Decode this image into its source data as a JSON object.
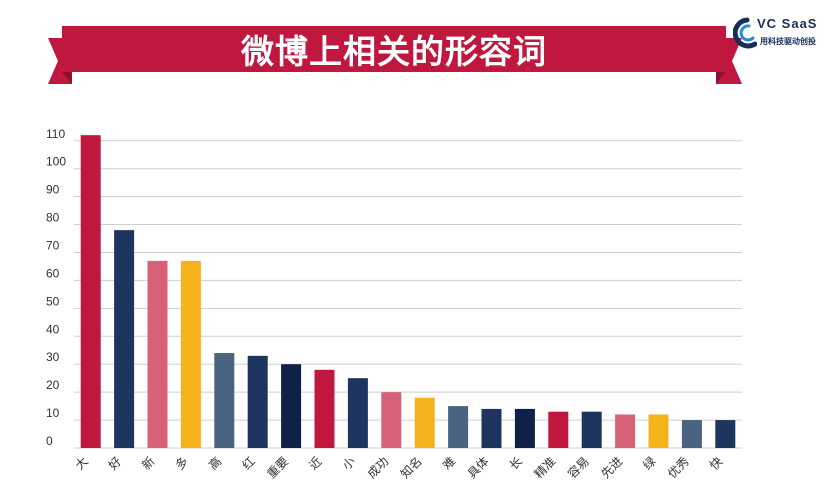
{
  "banner": {
    "title": "微博上相关的形容词",
    "color": "#c0173f",
    "shadow_color": "#8e1030"
  },
  "logo": {
    "brand": "VC SaaS",
    "tagline": "用科技驱动创投",
    "brand_color": "#1a2d5a",
    "arc_colors": [
      "#1a2d5a",
      "#2a8bd8"
    ]
  },
  "chart_data": {
    "type": "bar",
    "title": "微博上相关的形容词",
    "xlabel": "",
    "ylabel": "",
    "ylim": [
      0,
      110
    ],
    "yticks": [
      0,
      10,
      20,
      30,
      40,
      50,
      60,
      70,
      80,
      90,
      100,
      110
    ],
    "grid": true,
    "categories": [
      "大",
      "好",
      "新",
      "多",
      "高",
      "红",
      "重要",
      "近",
      "小",
      "成功",
      "知名",
      "难",
      "具体",
      "长",
      "精准",
      "容易",
      "先进",
      "绿",
      "优秀",
      "快"
    ],
    "values": [
      112,
      78,
      67,
      67,
      34,
      33,
      30,
      28,
      25,
      20,
      18,
      15,
      14,
      14,
      13,
      13,
      12,
      12,
      10,
      10
    ],
    "colors": [
      "#c0173f",
      "#1e3560",
      "#d8617a",
      "#f6b21b",
      "#4a6380",
      "#1e3560",
      "#0f2148",
      "#c0173f",
      "#1e3560",
      "#d8617a",
      "#f6b21b",
      "#4a6380",
      "#1e3560",
      "#0f2148",
      "#c0173f",
      "#1e3560",
      "#d8617a",
      "#f6b21b",
      "#4a6380",
      "#1e3560"
    ]
  }
}
